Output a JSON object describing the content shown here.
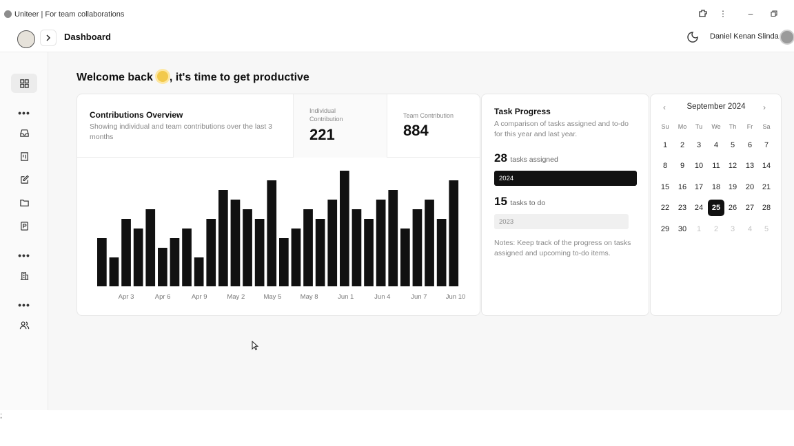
{
  "window": {
    "title": "Uniteer | For team collaborations"
  },
  "header": {
    "page_title": "Dashboard",
    "user_name": "Daniel Kenan Slinda",
    "toggle_icon": "chevron-right-icon"
  },
  "sidebar": {
    "items": [
      {
        "icon": "grid-icon"
      },
      {
        "icon": "inbox-icon"
      },
      {
        "icon": "board-icon"
      },
      {
        "icon": "edit-icon"
      },
      {
        "icon": "folder-icon"
      },
      {
        "icon": "document-icon"
      },
      {
        "icon": "building-icon"
      },
      {
        "icon": "users-icon"
      }
    ],
    "dots": "•••"
  },
  "welcome": {
    "before": "Welcome back",
    "after": ", it's time to get productive"
  },
  "contributions": {
    "title": "Contributions Overview",
    "subtitle": "Showing individual and team contributions over the last 3 months",
    "individual_label": "Individual Contribution",
    "individual_value": "221",
    "team_label": "Team Contribution",
    "team_value": "884"
  },
  "chart_data": {
    "type": "bar",
    "title": "",
    "xlabel": "",
    "ylabel": "",
    "ylim": [
      0,
      12
    ],
    "x_tick_labels": [
      "Apr 3",
      "Apr 6",
      "Apr 9",
      "May 2",
      "May 5",
      "May 8",
      "Jun 1",
      "Jun 4",
      "Jun 7",
      "Jun 10"
    ],
    "values": [
      5,
      3,
      7,
      6,
      8,
      4,
      5,
      6,
      3,
      7,
      10,
      9,
      8,
      7,
      11,
      5,
      6,
      8,
      7,
      9,
      12,
      8,
      7,
      9,
      10,
      6,
      8,
      9,
      7,
      11
    ],
    "bar_color": "#111111"
  },
  "task_progress": {
    "title": "Task Progress",
    "subtitle": "A comparison of tasks assigned and to-do for this year and last year.",
    "assigned_count": "28",
    "assigned_label": "tasks assigned",
    "year_current": "2024",
    "todo_count": "15",
    "todo_label": "tasks to do",
    "year_previous": "2023",
    "notes": "Notes: Keep track of the progress on tasks assigned and upcoming to-do items."
  },
  "calendar": {
    "month_label": "September 2024",
    "weekdays": [
      "Su",
      "Mo",
      "Tu",
      "We",
      "Th",
      "Fr",
      "Sa"
    ],
    "days": [
      "1",
      "2",
      "3",
      "4",
      "5",
      "6",
      "7",
      "8",
      "9",
      "10",
      "11",
      "12",
      "13",
      "14",
      "15",
      "16",
      "17",
      "18",
      "19",
      "20",
      "21",
      "22",
      "23",
      "24",
      "25",
      "26",
      "27",
      "28",
      "29",
      "30",
      "1",
      "2",
      "3",
      "4",
      "5"
    ],
    "selected": "25",
    "muted_from_index": 30
  },
  "footer": {
    "text": ";"
  }
}
